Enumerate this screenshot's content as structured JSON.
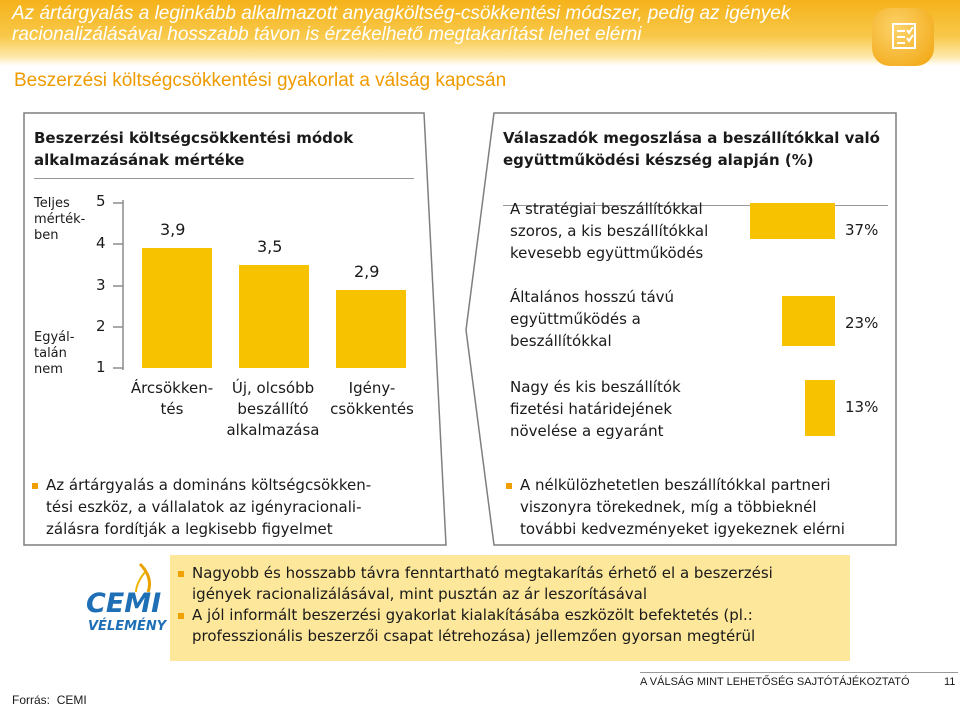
{
  "header": {
    "title": "Az ártárgyalás a leginkább alkalmazott anyagköltség-csökkentési módszer, pedig az igények racionalizálásával hosszabb távon is érzékelhető megtakarítást lehet elérni",
    "subtitle": "Beszerzési költségcsökkentési gyakorlat a válság kapcsán"
  },
  "left_panel": {
    "title_line1": "Beszerzési költségcsökkentési módok",
    "title_line2": "alkalmazásának mértéke",
    "axis_top_note": [
      "Teljes",
      "mérték-",
      "ben"
    ],
    "axis_bottom_note": [
      "Egyál-",
      "talán",
      "nem"
    ],
    "note": [
      "Az ártárgyalás a domináns költségcsökken-",
      "tési eszköz, a vállalatok az igényracionali-",
      "zálásra fordítják a legkisebb figyelmet"
    ]
  },
  "right_panel": {
    "title_line1": "Válaszadók megoszlása a beszállítókkal való",
    "title_line2": "együttműködési készség alapján (%)",
    "note": [
      "A nélkülözhetetlen beszállítókkal partneri",
      "viszonyra törekednek, míg a többieknél",
      "további kedvezményeket igyekeznek elérni"
    ]
  },
  "chart_data": [
    {
      "type": "bar",
      "title": "Beszerzési költségcsökkentési módok alkalmazásának mértéke",
      "categories": [
        [
          "Árcsökken-",
          "tés"
        ],
        [
          "Új, olcsóbb",
          "beszállító",
          "alkalmazása"
        ],
        [
          "Igény-",
          "csökkentés"
        ]
      ],
      "values": [
        3.9,
        3.5,
        2.9
      ],
      "value_labels": [
        "3,9",
        "3,5",
        "2,9"
      ],
      "yticks": [
        "1",
        "2",
        "3",
        "4",
        "5"
      ],
      "ylim": [
        1,
        5
      ]
    },
    {
      "type": "bar",
      "orientation": "horizontal",
      "title": "Válaszadók megoszlása a beszállítókkal való együttműködési készség alapján (%)",
      "categories": [
        [
          "A stratégiai beszállítókkal",
          "szoros, a kis beszállítókkal",
          "kevesebb együttműködés"
        ],
        [
          "Általános hosszú távú",
          "együttműködés a",
          "beszállítókkal"
        ],
        [
          "Nagy és kis beszállítók",
          "fizetési határidejének",
          "növelése a egyaránt"
        ]
      ],
      "values": [
        37,
        23,
        13
      ],
      "value_labels": [
        "37%",
        "23%",
        "13%"
      ],
      "xmax": 37
    }
  ],
  "conclusion": {
    "lines1": [
      "Nagyobb és hosszabb távra fenntartható megtakarítás érhető el a beszerzési",
      "igények racionalizálásával, mint pusztán az ár leszorításával"
    ],
    "lines2": [
      "A jól informált beszerzési gyakorlat kialakításába eszközölt befektetés (pl.:",
      "professzionális beszerzői csapat létrehozása) jellemzően gyorsan megtérül"
    ]
  },
  "logo": {
    "brand": "CEMI",
    "tag": "VÉLEMÉNY"
  },
  "footer": {
    "text": "A VÁLSÁG MINT LEHETŐSÉG SAJTÓTÁJÉKOZTATÓ",
    "page": "11"
  },
  "source": {
    "label": "Forrás:",
    "value": "CEMI"
  },
  "colors": {
    "accent": "#f7c200",
    "header": "#f5b21a",
    "subtitle": "#ef9b00",
    "box": "#fde79b"
  }
}
